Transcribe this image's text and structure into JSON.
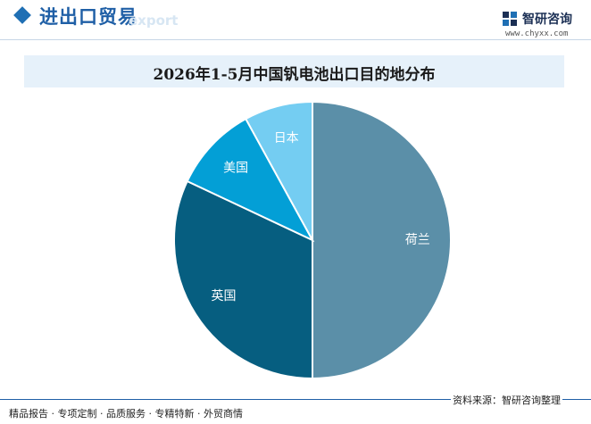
{
  "header": {
    "section_title": "进出口贸易",
    "section_watermark": "export",
    "logo_name": "智研咨询",
    "logo_url": "www.chyxx.com"
  },
  "footer": {
    "left_text": "精品报告 · 专项定制 · 品质服务 · 专精特新 · 外贸商情",
    "source_text": "资料来源：智研咨询整理"
  },
  "colors": {
    "brand_blue": "#1f5fa6",
    "title_band": "#e6f1fa"
  },
  "chart_data": {
    "type": "pie",
    "title": "2026年1-5月中国钒电池出口目的地分布",
    "slices": [
      {
        "label": "荷兰",
        "value": 50,
        "color": "#5b8fa8"
      },
      {
        "label": "英国",
        "value": 32,
        "color": "#065e80"
      },
      {
        "label": "美国",
        "value": 10,
        "color": "#039fd6"
      },
      {
        "label": "日本",
        "value": 8,
        "color": "#74cdf2"
      }
    ],
    "start_angle_deg": 0,
    "direction": "clockwise",
    "legend": "none"
  }
}
